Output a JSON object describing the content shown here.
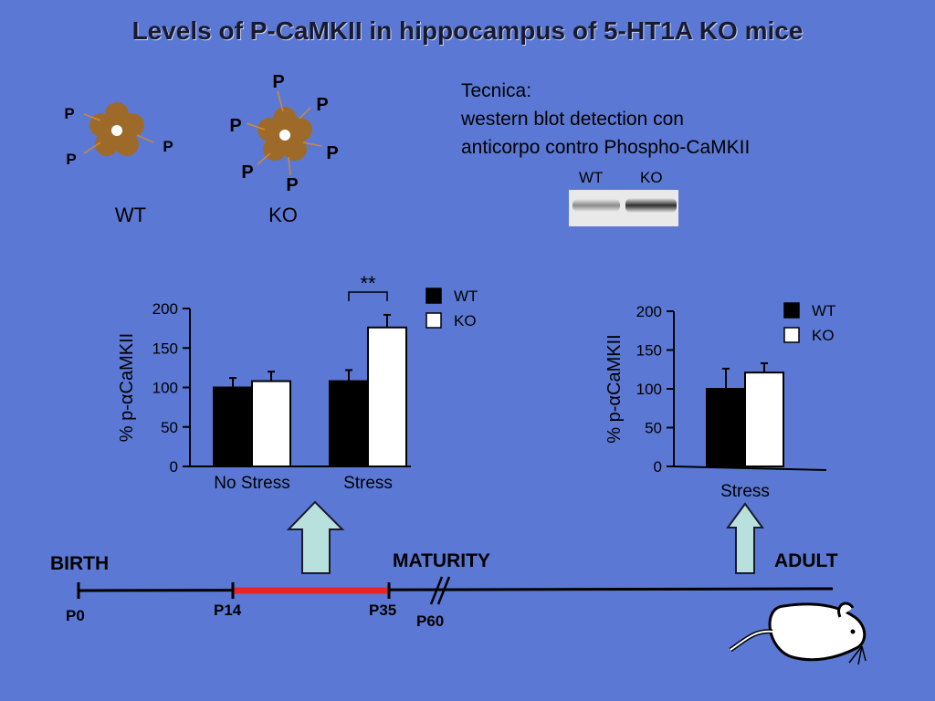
{
  "title": "Levels of P-CaMKII in hippocampus of 5-HT1A KO mice",
  "diagram": {
    "wt_label": "WT",
    "ko_label": "KO",
    "phospho_label": "P"
  },
  "technique": {
    "heading": "Tecnica:",
    "line1": "western blot detection con",
    "line2": "anticorpo contro Phospho-CaMKII"
  },
  "blot": {
    "wt_label": "WT",
    "ko_label": "KO"
  },
  "chart_data": [
    {
      "type": "bar",
      "categories": [
        "No Stress",
        "Stress"
      ],
      "series": [
        {
          "name": "WT",
          "values": [
            100,
            108
          ],
          "errors": [
            12,
            14
          ],
          "color": "#000000"
        },
        {
          "name": "KO",
          "values": [
            108,
            176
          ],
          "errors": [
            12,
            16
          ],
          "color": "#ffffff"
        }
      ],
      "ylabel": "% p-αCaMKII",
      "ylim": [
        0,
        200
      ],
      "yticks": [
        0,
        50,
        100,
        150,
        200
      ],
      "significance": "**",
      "legend": "top-right"
    },
    {
      "type": "bar",
      "categories": [
        "Stress"
      ],
      "series": [
        {
          "name": "WT",
          "values": [
            100
          ],
          "errors": [
            26
          ],
          "color": "#000000"
        },
        {
          "name": "KO",
          "values": [
            121
          ],
          "errors": [
            12
          ],
          "color": "#ffffff"
        }
      ],
      "ylabel": "% p-αCaMKII",
      "ylim": [
        0,
        200
      ],
      "yticks": [
        0,
        50,
        100,
        150,
        200
      ],
      "legend": "top-right"
    }
  ],
  "timeline": {
    "birth": "BIRTH",
    "maturity": "MATURITY",
    "adult": "ADULT",
    "p0": "P0",
    "p14": "P14",
    "p35": "P35",
    "p60": "P60"
  },
  "colors": {
    "background": "#5b79d4",
    "stress_period": "#e8242a",
    "arrow": "#b8e0dc",
    "enzyme": "#9e6a2a"
  }
}
